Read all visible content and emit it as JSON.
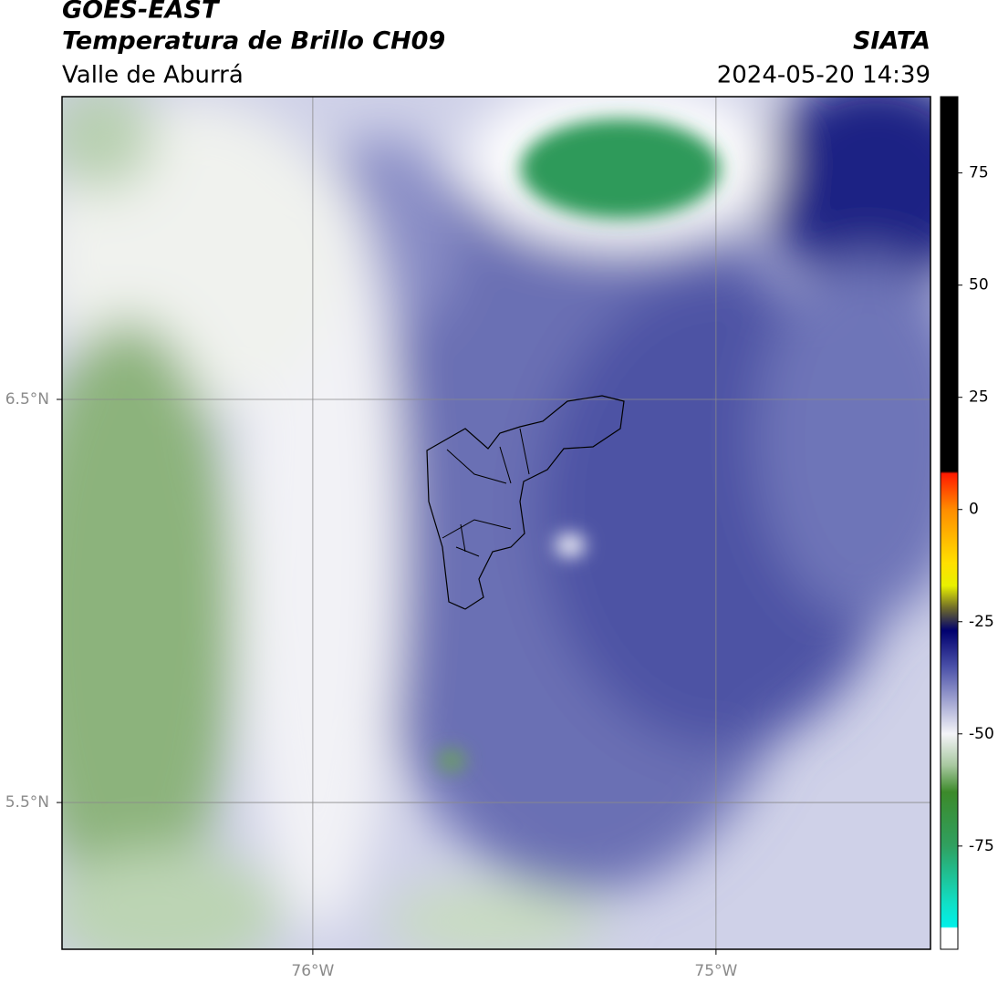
{
  "header": {
    "title": "GOES-EAST",
    "subtitle": "Temperatura de Brillo CH09",
    "region": "Valle de Aburrá",
    "source": "SIATA",
    "datetime": "2024-05-20 14:39"
  },
  "map": {
    "xlim": [
      -76.622,
      -74.468
    ],
    "ylim": [
      5.136,
      7.251
    ],
    "xticks": [
      {
        "value": -76,
        "label": "76°W"
      },
      {
        "value": -75,
        "label": "75°W"
      }
    ],
    "yticks": [
      {
        "value": 6.5,
        "label": "6.5°N"
      },
      {
        "value": 5.5,
        "label": "5.5°N"
      }
    ],
    "grid": true
  },
  "colorbar": {
    "lim": [
      -98,
      92
    ],
    "ticks": [
      75,
      50,
      25,
      0,
      -25,
      -50,
      -75
    ],
    "stops": [
      {
        "value": 92,
        "color": "#000000"
      },
      {
        "value": 8.5,
        "color": "#000000"
      },
      {
        "value": 8,
        "color": "#ff1a00"
      },
      {
        "value": 0,
        "color": "#ff8c00"
      },
      {
        "value": -12,
        "color": "#ffe000"
      },
      {
        "value": -17,
        "color": "#e8f000"
      },
      {
        "value": -22,
        "color": "#6e6a2a"
      },
      {
        "value": -27,
        "color": "#00006e"
      },
      {
        "value": -35,
        "color": "#4a50a8"
      },
      {
        "value": -50,
        "color": "#f4f4f8"
      },
      {
        "value": -57,
        "color": "#a8c8a0"
      },
      {
        "value": -63,
        "color": "#3c8a2a"
      },
      {
        "value": -75,
        "color": "#30a060"
      },
      {
        "value": -88,
        "color": "#10e0c8"
      },
      {
        "value": -93,
        "color": "#00f0e8"
      },
      {
        "value": -93.3,
        "color": "#ffffff"
      },
      {
        "value": -98,
        "color": "#ffffff"
      }
    ]
  }
}
